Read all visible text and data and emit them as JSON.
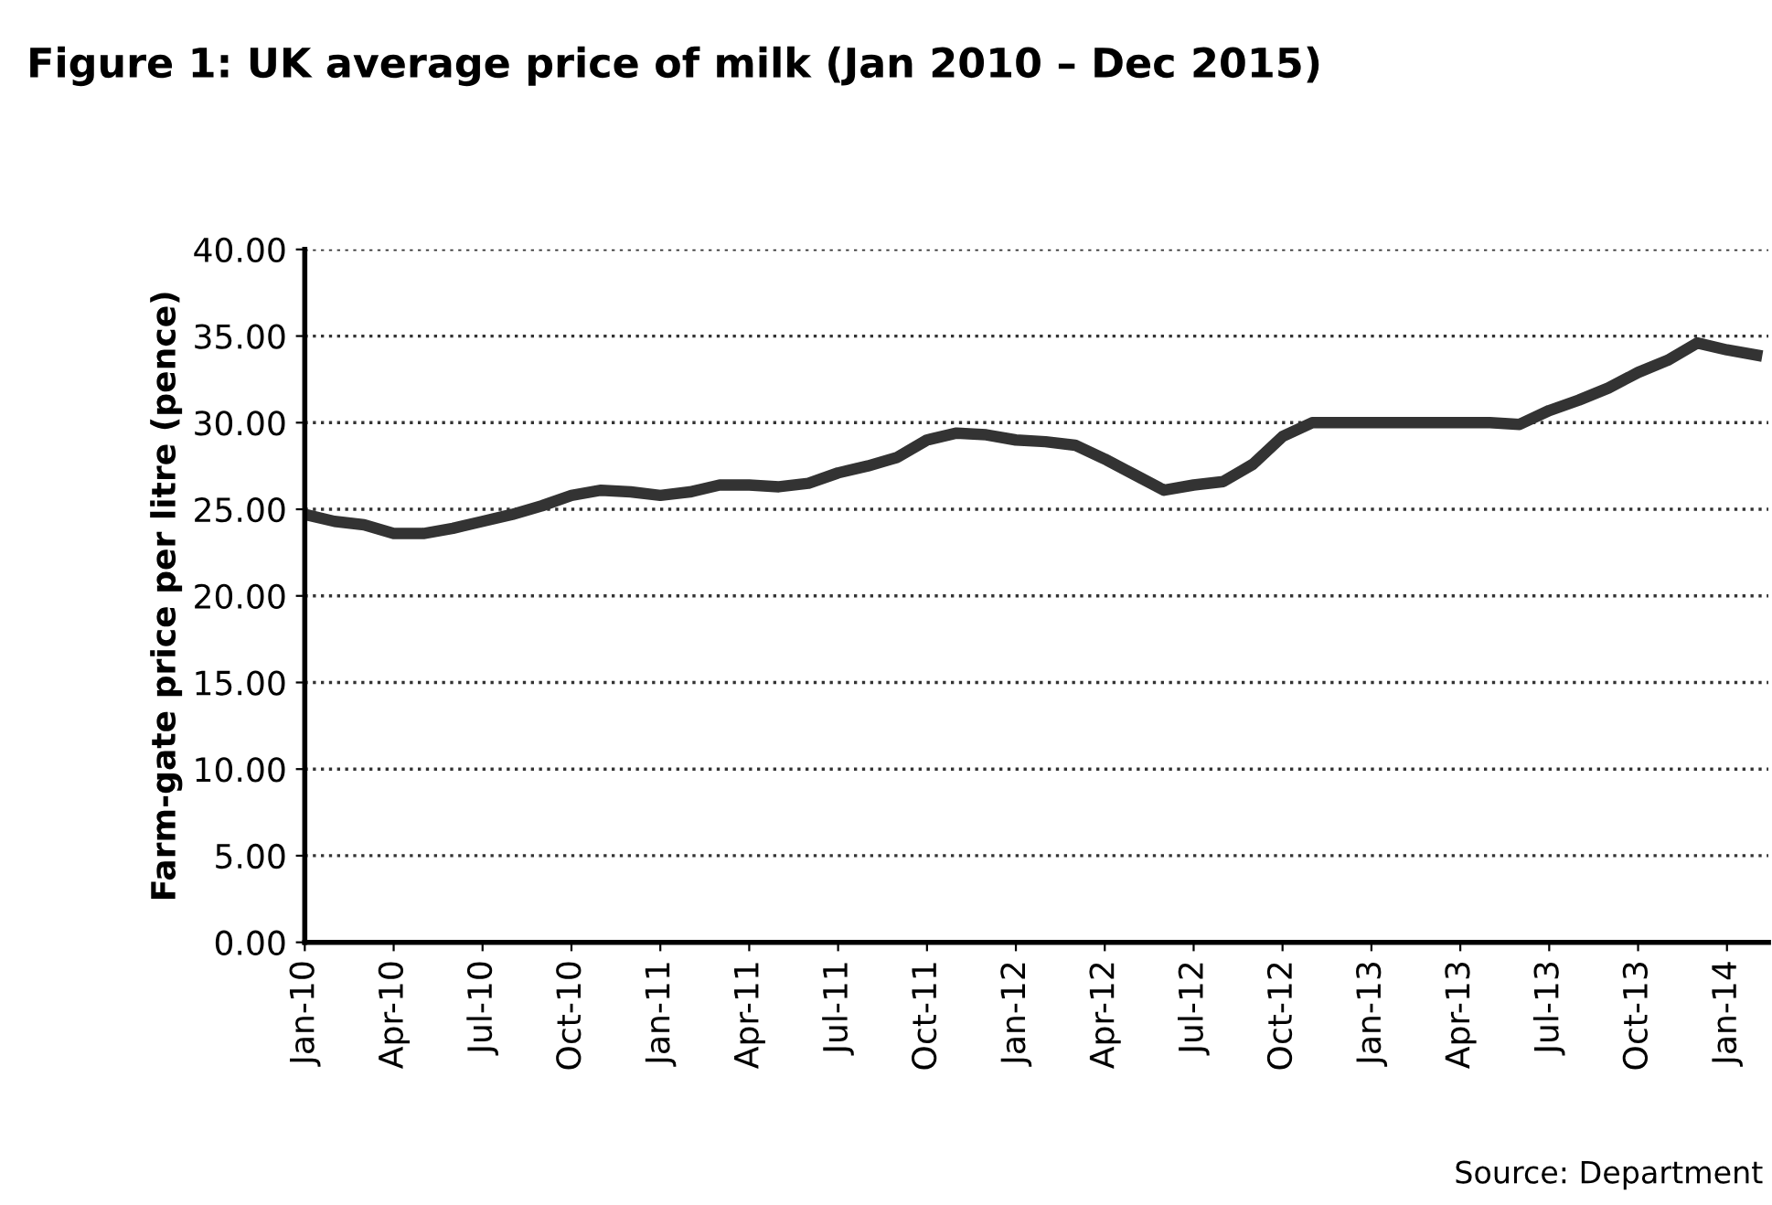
{
  "chart_data": {
    "type": "line",
    "title": "Figure 1: UK average price of milk (Jan 2010 – Dec 2015)",
    "ylabel": "Farm-gate price per litre (pence)",
    "categories": [
      "Jan-10",
      null,
      null,
      "Apr-10",
      null,
      null,
      "Jul-10",
      null,
      null,
      "Oct-10",
      null,
      null,
      "Jan-11",
      null,
      null,
      "Apr-11",
      null,
      null,
      "Jul-11",
      null,
      null,
      "Oct-11",
      null,
      null,
      "Jan-12",
      null,
      null,
      "Apr-12",
      null,
      null,
      "Jul-12",
      null,
      null,
      "Oct-12",
      null,
      null,
      "Jan-13",
      null,
      null,
      "Apr-13",
      null,
      null,
      "Jul-13",
      null,
      null,
      "Oct-13",
      null,
      null,
      "Jan-14",
      null
    ],
    "series": [
      {
        "color": "#333333",
        "values": [
          24.7,
          24.3,
          24.1,
          23.6,
          23.6,
          23.9,
          24.3,
          24.7,
          25.2,
          25.8,
          26.1,
          26.0,
          25.8,
          26.0,
          26.4,
          26.4,
          26.3,
          26.5,
          27.1,
          27.5,
          28.0,
          29.0,
          29.4,
          29.3,
          29.0,
          28.9,
          28.7,
          27.9,
          27.0,
          26.1,
          26.4,
          26.6,
          27.6,
          29.2,
          30.0,
          30.0,
          30.0,
          30.0,
          30.0,
          30.0,
          30.0,
          29.9,
          30.7,
          31.3,
          32.0,
          32.9,
          33.6,
          34.6,
          34.2,
          33.9
        ]
      }
    ],
    "ylim": [
      0,
      40
    ],
    "yticks": [
      {
        "value": 0,
        "label": "0.00"
      },
      {
        "value": 5,
        "label": "5.00"
      },
      {
        "value": 10,
        "label": "10.00"
      },
      {
        "value": 15,
        "label": "15.00"
      },
      {
        "value": 20,
        "label": "20.00"
      },
      {
        "value": 25,
        "label": "25.00"
      },
      {
        "value": 30,
        "label": "30.00"
      },
      {
        "value": 35,
        "label": "35.00"
      },
      {
        "value": 40,
        "label": "40.00"
      }
    ],
    "grid": "y",
    "legend": false,
    "marker": "none",
    "line_style": "solid",
    "annotations": [
      "Source: Department"
    ]
  }
}
